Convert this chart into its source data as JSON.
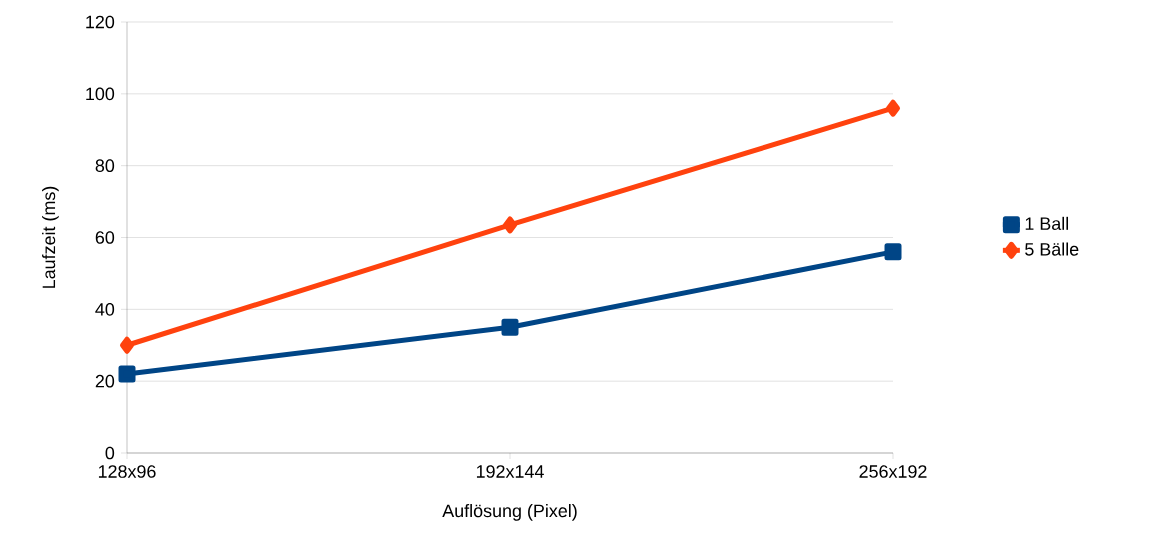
{
  "chart_data": {
    "type": "line",
    "xlabel": "Auflösung (Pixel)",
    "ylabel": "Laufzeit (ms)",
    "categories": [
      "128x96",
      "192x144",
      "256x192"
    ],
    "series": [
      {
        "name": "1 Ball",
        "color": "#004586",
        "marker": "square",
        "values": [
          22,
          35,
          56
        ]
      },
      {
        "name": "5 Bälle",
        "color": "#ff420e",
        "marker": "diamond",
        "values": [
          30,
          63.5,
          96
        ]
      }
    ],
    "ylim": [
      0,
      120
    ],
    "yticks": [
      0,
      20,
      40,
      60,
      80,
      100,
      120
    ],
    "grid": "y",
    "legend": "right",
    "line_style": "solid"
  }
}
